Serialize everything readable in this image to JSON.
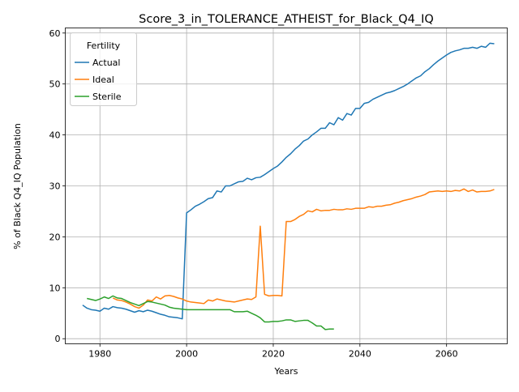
{
  "chart_data": {
    "type": "line",
    "title": "Score_3_in_TOLERANCE_ATHEIST_for_Black_Q4_IQ",
    "xlabel": "Years",
    "ylabel": "% of Black Q4_IQ Population",
    "xlim": [
      1972,
      2074
    ],
    "ylim": [
      -1,
      61
    ],
    "xticks": [
      1980,
      2000,
      2020,
      2040,
      2060
    ],
    "yticks": [
      0,
      10,
      20,
      30,
      40,
      50,
      60
    ],
    "grid": true,
    "legend": {
      "title": "Fertility",
      "position": "upper-left"
    },
    "series": [
      {
        "name": "Actual",
        "color": "#1f77b4",
        "points": [
          [
            1976,
            6.6
          ],
          [
            1977,
            6.0
          ],
          [
            1978,
            5.7
          ],
          [
            1979,
            5.6
          ],
          [
            1980,
            5.4
          ],
          [
            1981,
            6.0
          ],
          [
            1982,
            5.8
          ],
          [
            1983,
            6.3
          ],
          [
            1984,
            6.1
          ],
          [
            1985,
            6.0
          ],
          [
            1986,
            5.8
          ],
          [
            1987,
            5.5
          ],
          [
            1988,
            5.2
          ],
          [
            1989,
            5.5
          ],
          [
            1990,
            5.3
          ],
          [
            1991,
            5.6
          ],
          [
            1992,
            5.4
          ],
          [
            1993,
            5.1
          ],
          [
            1994,
            4.8
          ],
          [
            1995,
            4.6
          ],
          [
            1996,
            4.3
          ],
          [
            1997,
            4.2
          ],
          [
            1998,
            4.1
          ],
          [
            1999,
            3.9
          ],
          [
            2000,
            24.7
          ],
          [
            2001,
            25.3
          ],
          [
            2002,
            26.0
          ],
          [
            2003,
            26.4
          ],
          [
            2004,
            26.9
          ],
          [
            2005,
            27.5
          ],
          [
            2006,
            27.7
          ],
          [
            2007,
            29.0
          ],
          [
            2008,
            28.8
          ],
          [
            2009,
            30.0
          ],
          [
            2010,
            30.0
          ],
          [
            2011,
            30.4
          ],
          [
            2012,
            30.8
          ],
          [
            2013,
            30.9
          ],
          [
            2014,
            31.5
          ],
          [
            2015,
            31.2
          ],
          [
            2016,
            31.6
          ],
          [
            2017,
            31.7
          ],
          [
            2018,
            32.2
          ],
          [
            2019,
            32.8
          ],
          [
            2020,
            33.4
          ],
          [
            2021,
            33.9
          ],
          [
            2022,
            34.7
          ],
          [
            2023,
            35.6
          ],
          [
            2024,
            36.3
          ],
          [
            2025,
            37.2
          ],
          [
            2026,
            37.9
          ],
          [
            2027,
            38.8
          ],
          [
            2028,
            39.2
          ],
          [
            2029,
            40.0
          ],
          [
            2030,
            40.6
          ],
          [
            2031,
            41.3
          ],
          [
            2032,
            41.3
          ],
          [
            2033,
            42.4
          ],
          [
            2034,
            42.0
          ],
          [
            2035,
            43.4
          ],
          [
            2036,
            42.9
          ],
          [
            2037,
            44.2
          ],
          [
            2038,
            43.9
          ],
          [
            2039,
            45.2
          ],
          [
            2040,
            45.2
          ],
          [
            2041,
            46.2
          ],
          [
            2042,
            46.4
          ],
          [
            2043,
            47.0
          ],
          [
            2044,
            47.4
          ],
          [
            2045,
            47.8
          ],
          [
            2046,
            48.2
          ],
          [
            2047,
            48.4
          ],
          [
            2048,
            48.7
          ],
          [
            2049,
            49.1
          ],
          [
            2050,
            49.5
          ],
          [
            2051,
            50.0
          ],
          [
            2052,
            50.6
          ],
          [
            2053,
            51.2
          ],
          [
            2054,
            51.6
          ],
          [
            2055,
            52.4
          ],
          [
            2056,
            53.0
          ],
          [
            2057,
            53.8
          ],
          [
            2058,
            54.5
          ],
          [
            2059,
            55.1
          ],
          [
            2060,
            55.7
          ],
          [
            2061,
            56.2
          ],
          [
            2062,
            56.5
          ],
          [
            2063,
            56.7
          ],
          [
            2064,
            57.0
          ],
          [
            2065,
            57.0
          ],
          [
            2066,
            57.2
          ],
          [
            2067,
            57.0
          ],
          [
            2068,
            57.4
          ],
          [
            2069,
            57.2
          ],
          [
            2070,
            58.0
          ],
          [
            2071,
            57.9
          ]
        ]
      },
      {
        "name": "Ideal",
        "color": "#ff7f0e",
        "points": [
          [
            1983,
            8.0
          ],
          [
            1984,
            7.6
          ],
          [
            1985,
            7.5
          ],
          [
            1986,
            7.2
          ],
          [
            1987,
            6.8
          ],
          [
            1988,
            6.3
          ],
          [
            1989,
            6.0
          ],
          [
            1990,
            6.6
          ],
          [
            1991,
            7.6
          ],
          [
            1992,
            7.4
          ],
          [
            1993,
            8.2
          ],
          [
            1994,
            7.8
          ],
          [
            1995,
            8.4
          ],
          [
            1996,
            8.5
          ],
          [
            1997,
            8.3
          ],
          [
            1998,
            8.0
          ],
          [
            1999,
            7.8
          ],
          [
            2000,
            7.4
          ],
          [
            2001,
            7.2
          ],
          [
            2002,
            7.1
          ],
          [
            2003,
            7.0
          ],
          [
            2004,
            6.9
          ],
          [
            2005,
            7.6
          ],
          [
            2006,
            7.4
          ],
          [
            2007,
            7.8
          ],
          [
            2008,
            7.6
          ],
          [
            2009,
            7.4
          ],
          [
            2010,
            7.3
          ],
          [
            2011,
            7.2
          ],
          [
            2012,
            7.4
          ],
          [
            2013,
            7.6
          ],
          [
            2014,
            7.8
          ],
          [
            2015,
            7.7
          ],
          [
            2016,
            8.2
          ],
          [
            2017,
            22.1
          ],
          [
            2018,
            8.7
          ],
          [
            2019,
            8.4
          ],
          [
            2020,
            8.5
          ],
          [
            2021,
            8.5
          ],
          [
            2022,
            8.4
          ],
          [
            2023,
            23.0
          ],
          [
            2024,
            23.0
          ],
          [
            2025,
            23.4
          ],
          [
            2026,
            24.0
          ],
          [
            2027,
            24.4
          ],
          [
            2028,
            25.1
          ],
          [
            2029,
            24.9
          ],
          [
            2030,
            25.4
          ],
          [
            2031,
            25.1
          ],
          [
            2032,
            25.2
          ],
          [
            2033,
            25.2
          ],
          [
            2034,
            25.4
          ],
          [
            2035,
            25.3
          ],
          [
            2036,
            25.3
          ],
          [
            2037,
            25.5
          ],
          [
            2038,
            25.4
          ],
          [
            2039,
            25.6
          ],
          [
            2040,
            25.6
          ],
          [
            2041,
            25.6
          ],
          [
            2042,
            25.9
          ],
          [
            2043,
            25.8
          ],
          [
            2044,
            26.0
          ],
          [
            2045,
            26.0
          ],
          [
            2046,
            26.2
          ],
          [
            2047,
            26.3
          ],
          [
            2048,
            26.6
          ],
          [
            2049,
            26.8
          ],
          [
            2050,
            27.1
          ],
          [
            2051,
            27.3
          ],
          [
            2052,
            27.5
          ],
          [
            2053,
            27.8
          ],
          [
            2054,
            28.0
          ],
          [
            2055,
            28.3
          ],
          [
            2056,
            28.8
          ],
          [
            2057,
            28.9
          ],
          [
            2058,
            29.0
          ],
          [
            2059,
            28.9
          ],
          [
            2060,
            29.0
          ],
          [
            2061,
            28.9
          ],
          [
            2062,
            29.1
          ],
          [
            2063,
            29.0
          ],
          [
            2064,
            29.4
          ],
          [
            2065,
            28.9
          ],
          [
            2066,
            29.2
          ],
          [
            2067,
            28.8
          ],
          [
            2068,
            28.9
          ],
          [
            2069,
            28.9
          ],
          [
            2070,
            29.0
          ],
          [
            2071,
            29.3
          ]
        ]
      },
      {
        "name": "Sterile",
        "color": "#2ca02c",
        "points": [
          [
            1977,
            7.9
          ],
          [
            1978,
            7.7
          ],
          [
            1979,
            7.5
          ],
          [
            1980,
            7.8
          ],
          [
            1981,
            8.2
          ],
          [
            1982,
            7.9
          ],
          [
            1983,
            8.4
          ],
          [
            1984,
            8.0
          ],
          [
            1985,
            7.9
          ],
          [
            1986,
            7.5
          ],
          [
            1987,
            7.1
          ],
          [
            1988,
            6.8
          ],
          [
            1989,
            6.5
          ],
          [
            1990,
            6.9
          ],
          [
            1991,
            7.3
          ],
          [
            1992,
            7.2
          ],
          [
            1993,
            7.0
          ],
          [
            1994,
            6.8
          ],
          [
            1995,
            6.6
          ],
          [
            1996,
            6.2
          ],
          [
            1997,
            6.0
          ],
          [
            1998,
            5.9
          ],
          [
            1999,
            5.8
          ],
          [
            2000,
            5.7
          ],
          [
            2001,
            5.7
          ],
          [
            2002,
            5.7
          ],
          [
            2003,
            5.7
          ],
          [
            2004,
            5.7
          ],
          [
            2005,
            5.7
          ],
          [
            2006,
            5.7
          ],
          [
            2007,
            5.7
          ],
          [
            2008,
            5.7
          ],
          [
            2009,
            5.7
          ],
          [
            2010,
            5.7
          ],
          [
            2011,
            5.3
          ],
          [
            2012,
            5.3
          ],
          [
            2013,
            5.3
          ],
          [
            2014,
            5.4
          ],
          [
            2015,
            5.0
          ],
          [
            2016,
            4.6
          ],
          [
            2017,
            4.1
          ],
          [
            2018,
            3.3
          ],
          [
            2019,
            3.3
          ],
          [
            2020,
            3.4
          ],
          [
            2021,
            3.4
          ],
          [
            2022,
            3.5
          ],
          [
            2023,
            3.7
          ],
          [
            2024,
            3.7
          ],
          [
            2025,
            3.4
          ],
          [
            2026,
            3.5
          ],
          [
            2027,
            3.6
          ],
          [
            2028,
            3.6
          ],
          [
            2029,
            3.1
          ],
          [
            2030,
            2.5
          ],
          [
            2031,
            2.5
          ],
          [
            2032,
            1.8
          ],
          [
            2033,
            1.9
          ],
          [
            2034,
            1.9
          ]
        ]
      }
    ]
  }
}
